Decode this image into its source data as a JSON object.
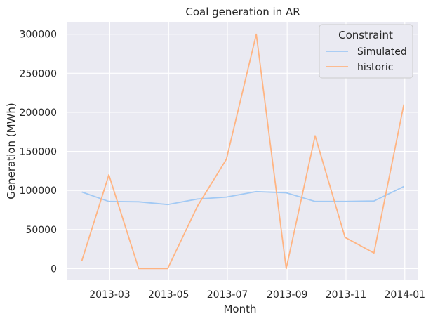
{
  "chart_data": {
    "type": "line",
    "title": "Coal generation in AR",
    "xlabel": "Month",
    "ylabel": "Generation (MWh)",
    "x": [
      "2013-01-31",
      "2013-02-28",
      "2013-03-31",
      "2013-04-30",
      "2013-05-31",
      "2013-06-30",
      "2013-07-31",
      "2013-08-31",
      "2013-09-30",
      "2013-10-31",
      "2013-11-30",
      "2013-12-31"
    ],
    "xlim": [
      "2013-01-16",
      "2014-01-15"
    ],
    "ylim": [
      -14000,
      315000
    ],
    "grid": true,
    "xticks": [
      {
        "date": "2013-03-01",
        "label": "2013-03"
      },
      {
        "date": "2013-05-01",
        "label": "2013-05"
      },
      {
        "date": "2013-07-01",
        "label": "2013-07"
      },
      {
        "date": "2013-09-01",
        "label": "2013-09"
      },
      {
        "date": "2013-11-01",
        "label": "2013-11"
      },
      {
        "date": "2014-01-01",
        "label": "2014-01"
      }
    ],
    "yticks": [
      0,
      50000,
      100000,
      150000,
      200000,
      250000,
      300000
    ],
    "legend": {
      "title": "Constraint",
      "position": "upper-right"
    },
    "series": [
      {
        "name": "Simulated",
        "color": "#a1c9f4",
        "values": [
          98000,
          86000,
          85500,
          82000,
          89000,
          91500,
          98500,
          97000,
          86000,
          86000,
          86500,
          105000
        ]
      },
      {
        "name": "historic",
        "color": "#ffb482",
        "values": [
          10000,
          120000,
          0,
          0,
          80000,
          140000,
          300000,
          0,
          170000,
          40000,
          20000,
          210000
        ]
      }
    ]
  }
}
